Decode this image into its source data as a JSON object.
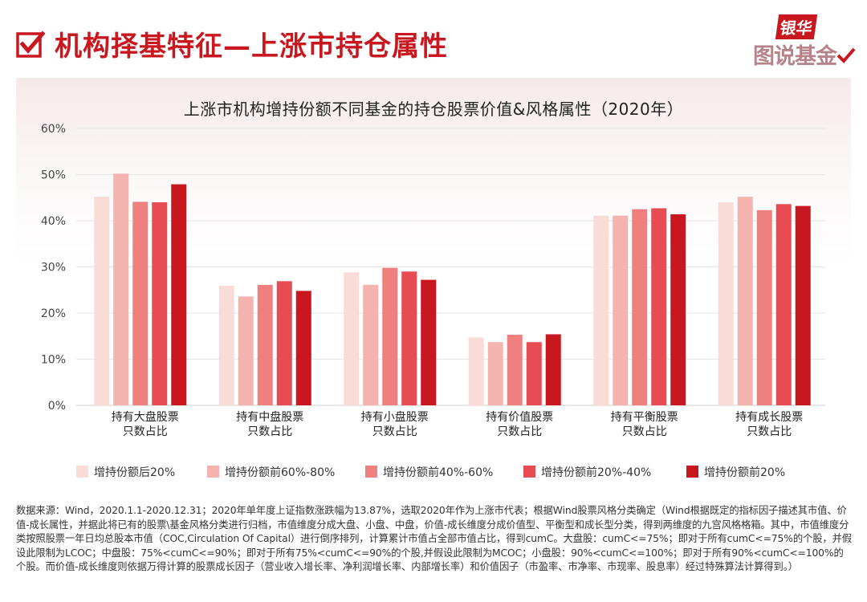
{
  "header": {
    "title": "机构择基特征—上涨市持仓属性",
    "logo_top": "银华",
    "logo_bottom": "图说基金"
  },
  "colors": {
    "brand": "#c8171f",
    "series": [
      "#fadcd6",
      "#f5b3b0",
      "#f08080",
      "#e84c53",
      "#c8171f"
    ]
  },
  "chart_data": {
    "type": "bar",
    "title": "上涨市机构增持份额不同基金的持仓股票价值&风格属性（2020年）",
    "categories": [
      [
        "持有大盘股票",
        "只数占比"
      ],
      [
        "持有中盘股票",
        "只数占比"
      ],
      [
        "持有小盘股票",
        "只数占比"
      ],
      [
        "持有价值股票",
        "只数占比"
      ],
      [
        "持有平衡股票",
        "只数占比"
      ],
      [
        "持有成长股票",
        "只数占比"
      ]
    ],
    "series": [
      {
        "name": "增持份额后20%",
        "values": [
          45.2,
          25.9,
          28.8,
          14.7,
          41.1,
          44.0
        ]
      },
      {
        "name": "增持份额前60%-80%",
        "values": [
          50.2,
          23.6,
          26.1,
          13.7,
          41.1,
          45.2
        ]
      },
      {
        "name": "增持份额前40%-60%",
        "values": [
          44.1,
          26.1,
          29.8,
          15.3,
          42.5,
          42.3
        ]
      },
      {
        "name": "增持份额前20%-40%",
        "values": [
          44.0,
          26.9,
          29.0,
          13.7,
          42.7,
          43.6
        ]
      },
      {
        "name": "增持份额前20%",
        "values": [
          47.9,
          24.8,
          27.2,
          15.4,
          41.4,
          43.2
        ]
      }
    ],
    "ylim": [
      0,
      60
    ],
    "yticks": [
      "0%",
      "10%",
      "20%",
      "30%",
      "40%",
      "50%",
      "60%"
    ],
    "ytick_values": [
      0,
      10,
      20,
      30,
      40,
      50,
      60
    ],
    "grid": true,
    "legend_position": "bottom"
  },
  "footnote": "数据来源：Wind，2020.1.1-2020.12.31；2020年单年度上证指数涨跌幅为13.87%，选取2020年作为上涨市代表；根据Wind股票风格分类确定（Wind根据既定的指标因子描述其市值、价值-成长属性，并据此将已有的股票\\基金风格分类进行归档，市值维度分成大盘、小盘、中盘，价值-成长维度分成价值型、平衡型和成长型分类，得到两维度的九宫风格格箱。其中，市值维度分类按照股票一年日均总股本市值（COC,Circulation Of Capital）进行倒序排列，计算累计市值占全部市值占比，得到cumC。大盘股：cumC<=75%；即对于所有cumC<=75%的个股，并假设此限制为LCOC；中盘股：75%<cumC<=90%；即对于所有75%<cumC<=90%的个股,并假设此限制为MCOC；小盘股：90%<cumC<=100%；即对于所有90%<cumC<=100%的个股。而价值-成长维度则依据万得计算的股票成长因子（营业收入增长率、净利润增长率、内部增长率）和价值因子（市盈率、市净率、市现率、股息率）经过特殊算法计算得到。）"
}
